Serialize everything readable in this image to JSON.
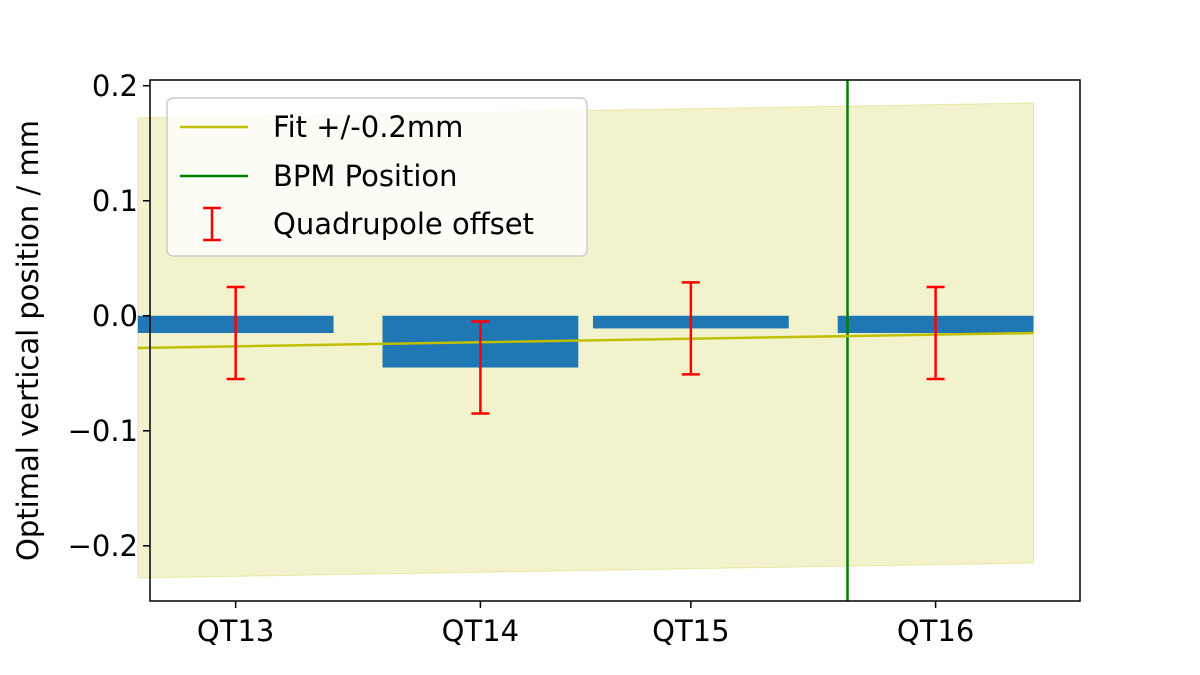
{
  "chart_data": {
    "type": "bar",
    "xlim": [
      -0.35,
      3.45
    ],
    "ylim": [
      -0.248,
      0.205
    ],
    "yticks": [
      0.2,
      0.1,
      0.0,
      -0.1,
      -0.2
    ],
    "ytick_labels": [
      "0.2",
      "0.1",
      "0.0",
      "−0.1",
      "−0.2"
    ],
    "ylabel": "Optimal vertical position / mm",
    "xlabel": "",
    "grid": false,
    "legend_position": "upper left",
    "bars": [
      {
        "label": "QT13",
        "center": 0.0,
        "halfwidth": 0.4,
        "value": -0.015
      },
      {
        "label": "QT14",
        "center": 1.0,
        "halfwidth": 0.4,
        "value": -0.045
      },
      {
        "label": "QT15",
        "center": 1.86,
        "halfwidth": 0.4,
        "value": -0.011
      },
      {
        "label": "QT16",
        "center": 2.86,
        "halfwidth": 0.4,
        "value": -0.015
      }
    ],
    "errorbars": [
      {
        "x": 0.0,
        "y": -0.015,
        "err": 0.04
      },
      {
        "x": 1.0,
        "y": -0.045,
        "err": 0.04
      },
      {
        "x": 1.86,
        "y": -0.011,
        "err": 0.04
      },
      {
        "x": 2.86,
        "y": -0.015,
        "err": 0.04
      }
    ],
    "fit": {
      "x": [
        -0.4,
        3.26
      ],
      "y": [
        -0.028,
        -0.015
      ],
      "band": 0.2
    },
    "bpm_position_x": 2.5,
    "colors": {
      "bars": "#1f77b4",
      "errorbars": "#ff0000",
      "fit": "#bfbf00",
      "band": "#bfbf00",
      "bpm": "#008000"
    },
    "legend": [
      {
        "label": "Fit +/-0.2mm",
        "kind": "line",
        "color": "#bfbf00"
      },
      {
        "label": "BPM Position",
        "kind": "line",
        "color": "#008000"
      },
      {
        "label": "Quadrupole offset",
        "kind": "errorbar",
        "color": "#ff0000"
      }
    ]
  }
}
